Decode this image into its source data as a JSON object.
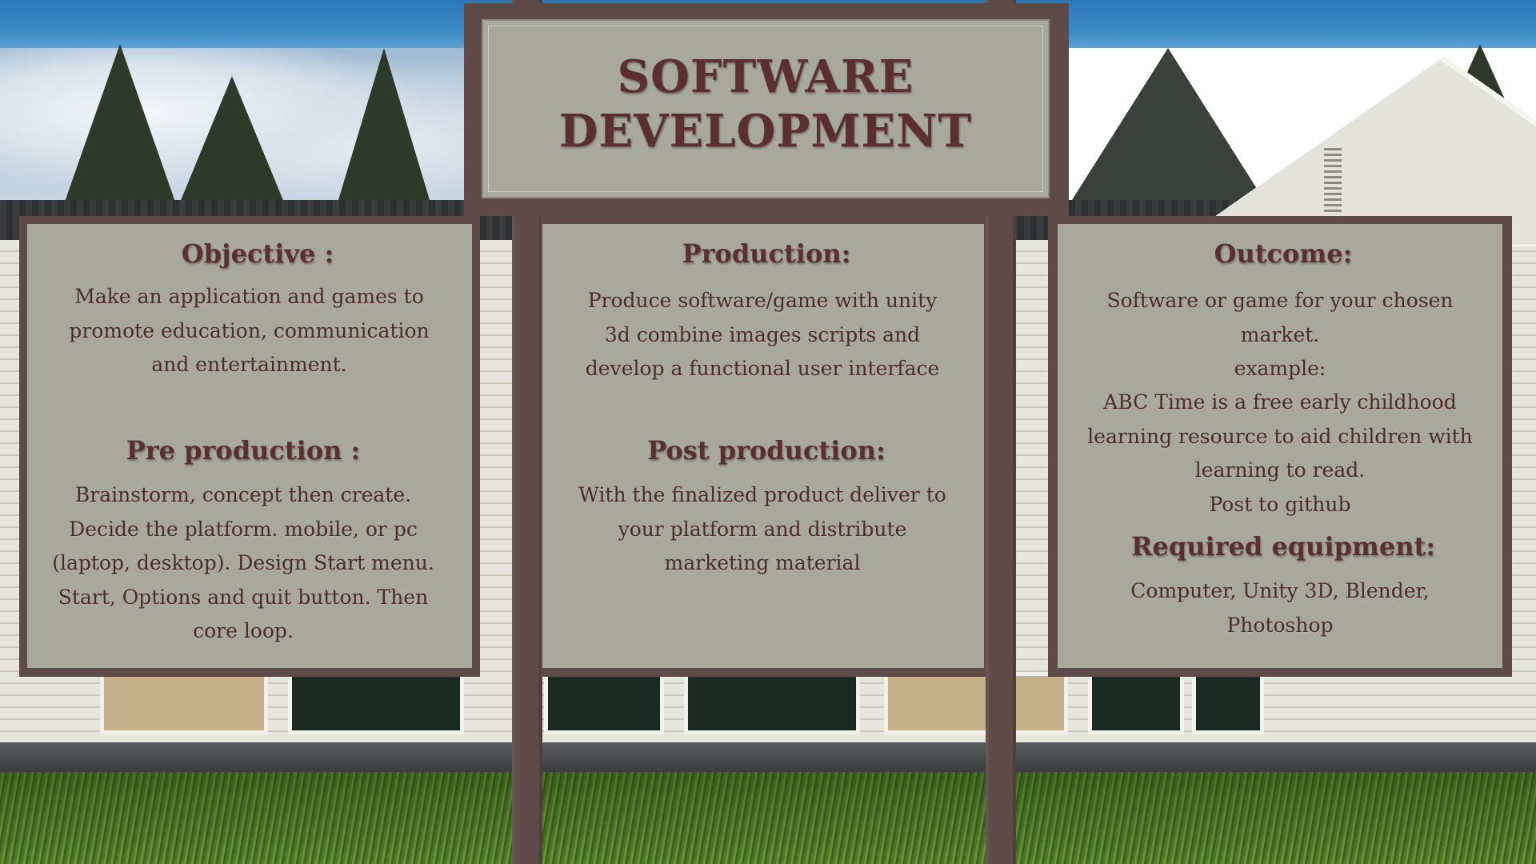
{
  "title": {
    "line1": "SOFTWARE",
    "line2": "DEVELOPMENT"
  },
  "panels": {
    "left": {
      "objective_heading": "Objective :",
      "objective_text": "Make an application and games to promote education, communication and entertainment.",
      "preproduction_heading": "Pre production :",
      "preproduction_text": "Brainstorm, concept then create. Decide the platform. mobile, or pc (laptop, desktop). Design Start menu. Start, Options and quit button. Then core loop."
    },
    "middle": {
      "production_heading": "Production:",
      "production_text": "Produce software/game with unity 3d combine images scripts and develop a functional user interface",
      "postproduction_heading": "Post production:",
      "postproduction_text": "With the finalized product deliver to your platform and distribute marketing material"
    },
    "right": {
      "outcome_heading": "Outcome:",
      "outcome_line1": "Software or game for your chosen market.",
      "outcome_line2": "example:",
      "outcome_line3": "ABC Time is a free early childhood learning resource to aid children with learning to read.",
      "outcome_line4": "Post to github",
      "equipment_heading": "Required equipment:",
      "equipment_text": "Computer, Unity 3D, Blender, Photoshop"
    }
  },
  "colors": {
    "sign_wood": "#5e4b47",
    "sign_face": "#a8a89b",
    "text": "#5a2f2e"
  }
}
